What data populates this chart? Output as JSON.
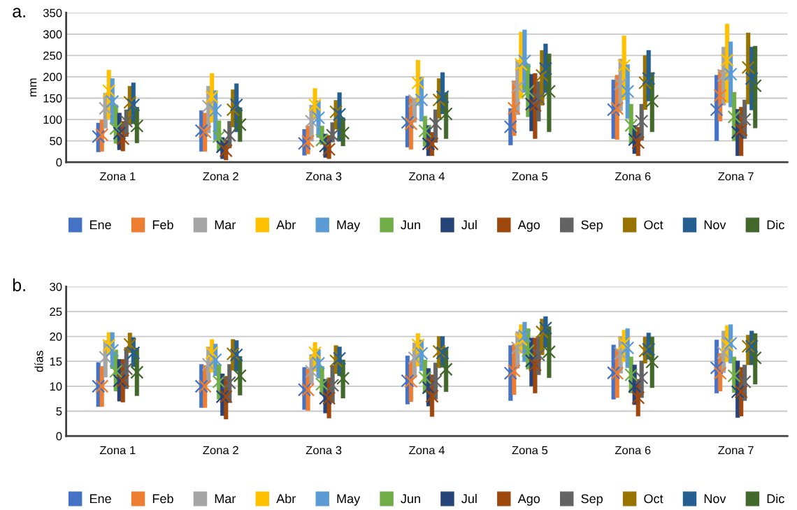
{
  "chart_data": [
    {
      "type": "bar",
      "title": "a.",
      "ylabel": "mm",
      "categories": [
        "Zona 1",
        "Zona 2",
        "Zona 3",
        "Zona 4",
        "Zona 5",
        "Zona 6",
        "Zona 7"
      ],
      "ylim": [
        0,
        350
      ],
      "yticks": [
        0,
        50,
        100,
        150,
        200,
        250,
        300,
        350
      ],
      "grid": "y",
      "legend": "bottom",
      "marker": "cross",
      "series": [
        {
          "name": "Ene",
          "color": "#4472c4",
          "base": [
            24,
            25,
            16,
            35,
            40,
            55,
            50
          ],
          "values": [
            68,
            96,
            61,
            120,
            86,
            138,
            154
          ]
        },
        {
          "name": "Feb",
          "color": "#ed7d31",
          "base": [
            25,
            25,
            19,
            30,
            62,
            53,
            96
          ],
          "values": [
            74,
            90,
            66,
            121,
            129,
            151,
            120
          ]
        },
        {
          "name": "Mar",
          "color": "#a5a5a5",
          "base": [
            79,
            68,
            49,
            93,
            111,
            120,
            133
          ],
          "values": [
            83,
            110,
            85,
            56,
            128,
            122,
            137
          ]
        },
        {
          "name": "Abr",
          "color": "#ffc000",
          "base": [
            101,
            93,
            101,
            133,
            149,
            146,
            139
          ],
          "values": [
            115,
            115,
            72,
            106,
            156,
            150,
            185
          ]
        },
        {
          "name": "May",
          "color": "#5b9bd5",
          "base": [
            88,
            52,
            58,
            96,
            163,
            102,
            129
          ],
          "values": [
            108,
            116,
            86,
            103,
            147,
            127,
            153
          ]
        },
        {
          "name": "Jun",
          "color": "#70ad47",
          "base": [
            44,
            27,
            41,
            37,
            106,
            44,
            50
          ],
          "values": [
            90,
            70,
            44,
            71,
            124,
            92,
            114
          ]
        },
        {
          "name": "Jul",
          "color": "#264478",
          "base": [
            29,
            8,
            11,
            15,
            73,
            20,
            15
          ],
          "values": [
            86,
            50,
            55,
            71,
            133,
            66,
            109
          ]
        },
        {
          "name": "Ago",
          "color": "#9e480e",
          "base": [
            26,
            5,
            8,
            15,
            55,
            15,
            15
          ],
          "values": [
            70,
            47,
            55,
            55,
            153,
            67,
            114
          ]
        },
        {
          "name": "Sep",
          "color": "#636363",
          "base": [
            60,
            33,
            47,
            46,
            96,
            51,
            55
          ],
          "values": [
            63,
            63,
            46,
            77,
            93,
            85,
            91
          ]
        },
        {
          "name": "Oct",
          "color": "#997300",
          "base": [
            88,
            82,
            77,
            103,
            133,
            123,
            136
          ],
          "values": [
            90,
            88,
            68,
            93,
            129,
            127,
            167
          ]
        },
        {
          "name": "Nov",
          "color": "#255e91",
          "base": [
            90,
            71,
            49,
            113,
            163,
            143,
            122
          ],
          "values": [
            96,
            113,
            114,
            97,
            114,
            119,
            148
          ]
        },
        {
          "name": "Dic",
          "color": "#43682b",
          "base": [
            45,
            48,
            38,
            55,
            71,
            71,
            80
          ],
          "values": [
            84,
            80,
            66,
            108,
            183,
            139,
            192
          ]
        },
        {
          "type": "scatter",
          "color": "#4472c4",
          "values": [
            60,
            74,
            44,
            93,
            83,
            123,
            123
          ]
        },
        {
          "type": "scatter",
          "color": "#ed7d31",
          "values": [
            64,
            71,
            49,
            90,
            126,
            126,
            156
          ]
        },
        {
          "type": "scatter",
          "color": "#a5a5a5",
          "values": [
            126,
            131,
            96,
            144,
            176,
            183,
            203
          ]
        },
        {
          "type": "scatter",
          "color": "#ffc000",
          "values": [
            167,
            153,
            134,
            186,
            229,
            226,
            239
          ]
        },
        {
          "type": "scatter",
          "color": "#5b9bd5",
          "values": [
            142,
            121,
            104,
            146,
            237,
            166,
            206
          ]
        },
        {
          "type": "scatter",
          "color": "#70ad47",
          "values": [
            79,
            60,
            52,
            73,
            166,
            86,
            106
          ]
        },
        {
          "type": "scatter",
          "color": "#264478",
          "values": [
            68,
            36,
            38,
            43,
            136,
            53,
            70
          ]
        },
        {
          "type": "scatter",
          "color": "#9e480e",
          "values": [
            55,
            27,
            30,
            43,
            133,
            46,
            76
          ]
        },
        {
          "type": "scatter",
          "color": "#636363",
          "values": [
            96,
            63,
            63,
            90,
            149,
            96,
            100
          ]
        },
        {
          "type": "scatter",
          "color": "#997300",
          "values": [
            140,
            123,
            118,
            146,
            203,
            186,
            222
          ]
        },
        {
          "type": "scatter",
          "color": "#255e91",
          "values": [
            134,
            134,
            112,
            153,
            219,
            196,
            196
          ]
        },
        {
          "type": "scatter",
          "color": "#43682b",
          "values": [
            85,
            88,
            68,
            113,
            166,
            143,
            179
          ]
        }
      ]
    },
    {
      "type": "bar",
      "title": "b.",
      "ylabel": "días",
      "categories": [
        "Zona 1",
        "Zona 2",
        "Zona 3",
        "Zona 4",
        "Zona 5",
        "Zona 6",
        "Zona 7"
      ],
      "ylim": [
        0,
        30
      ],
      "yticks": [
        0,
        5,
        10,
        15,
        20,
        25,
        30
      ],
      "grid": "y",
      "legend": "bottom",
      "marker": "cross",
      "series": [
        {
          "name": "Ene",
          "color": "#4472c4",
          "base": [
            5.9,
            5.7,
            5.3,
            6.4,
            7.1,
            7.4,
            8.6
          ],
          "values": [
            8.9,
            8.7,
            8.5,
            9.7,
            11.1,
            10.9,
            10.7
          ]
        },
        {
          "name": "Feb",
          "color": "#ed7d31",
          "base": [
            5.9,
            5.7,
            5.1,
            6.9,
            8.3,
            7.7,
            9.0
          ],
          "values": [
            8.1,
            8.5,
            8.4,
            8.2,
            10.1,
            9.7,
            7.6
          ]
        },
        {
          "name": "Mar",
          "color": "#a5a5a5",
          "base": [
            11.8,
            10.7,
            10.4,
            11.7,
            13.6,
            12.6,
            12.7
          ],
          "values": [
            7.4,
            7.2,
            6.0,
            7.0,
            7.4,
            7.4,
            8.4
          ]
        },
        {
          "name": "Abr",
          "color": "#ffc000",
          "base": [
            16.3,
            12.8,
            13.0,
            14.0,
            16.6,
            14.9,
            14.9
          ],
          "values": [
            4.5,
            6.6,
            5.8,
            6.6,
            5.8,
            6.4,
            7.3
          ]
        },
        {
          "name": "May",
          "color": "#5b9bd5",
          "base": [
            13.5,
            12.1,
            11.6,
            13.1,
            14.9,
            13.7,
            14.6
          ],
          "values": [
            7.3,
            6.4,
            5.8,
            6.2,
            8.0,
            7.9,
            7.8
          ]
        },
        {
          "name": "Jun",
          "color": "#70ad47",
          "base": [
            9.0,
            7.4,
            8.3,
            8.7,
            13.4,
            8.6,
            8.7
          ],
          "values": [
            8.3,
            7.0,
            5.7,
            6.6,
            8.2,
            7.3,
            7.2
          ]
        },
        {
          "name": "Jul",
          "color": "#264478",
          "base": [
            7.0,
            4.1,
            4.6,
            6.0,
            10.0,
            6.3,
            3.7
          ],
          "values": [
            8.4,
            8.4,
            6.8,
            7.6,
            9.7,
            8.0,
            11.4
          ]
        },
        {
          "name": "Ago",
          "color": "#9e480e",
          "base": [
            6.8,
            3.4,
            3.6,
            3.9,
            8.6,
            4.0,
            4.0
          ],
          "values": [
            8.6,
            8.6,
            8.1,
            8.4,
            11.1,
            7.4,
            9.8
          ]
        },
        {
          "name": "Sep",
          "color": "#636363",
          "base": [
            9.5,
            6.7,
            6.7,
            7.4,
            12.3,
            7.7,
            7.1
          ],
          "values": [
            8.3,
            7.7,
            7.5,
            7.3,
            7.7,
            7.4,
            7.2
          ]
        },
        {
          "name": "Oct",
          "color": "#997300",
          "base": [
            16.7,
            13.2,
            12.5,
            13.7,
            16.3,
            14.6,
            14.3
          ],
          "values": [
            4.0,
            6.2,
            5.7,
            6.3,
            7.2,
            5.3,
            6.0
          ]
        },
        {
          "name": "Nov",
          "color": "#255e91",
          "base": [
            13.9,
            13.0,
            12.1,
            13.8,
            17.8,
            15.4,
            14.3
          ],
          "values": [
            5.9,
            6.2,
            5.8,
            6.2,
            6.2,
            5.3,
            6.8
          ]
        },
        {
          "name": "Dic",
          "color": "#43682b",
          "base": [
            8.1,
            8.2,
            7.6,
            8.9,
            11.7,
            9.7,
            10.4
          ],
          "values": [
            9.6,
            7.8,
            7.7,
            8.9,
            10.3,
            10.2,
            10.2
          ]
        },
        {
          "type": "scatter",
          "color": "#4472c4",
          "values": [
            10.0,
            10.0,
            9.3,
            11.1,
            12.6,
            12.7,
            13.7
          ]
        },
        {
          "type": "scatter",
          "color": "#ed7d31",
          "values": [
            10.0,
            10.0,
            9.3,
            11.0,
            13.1,
            12.6,
            12.6
          ]
        },
        {
          "type": "scatter",
          "color": "#a5a5a5",
          "values": [
            15.8,
            14.4,
            13.0,
            15.7,
            17.7,
            16.6,
            16.7
          ]
        },
        {
          "type": "scatter",
          "color": "#ffc000",
          "values": [
            18.2,
            16.7,
            16.7,
            18.3,
            19.4,
            18.6,
            18.3
          ]
        },
        {
          "type": "scatter",
          "color": "#5b9bd5",
          "values": [
            17.2,
            15.3,
            14.6,
            16.6,
            20.1,
            17.7,
            18.6
          ]
        },
        {
          "type": "scatter",
          "color": "#70ad47",
          "values": [
            13.0,
            10.9,
            10.4,
            11.7,
            17.1,
            12.3,
            12.1
          ]
        },
        {
          "type": "scatter",
          "color": "#264478",
          "values": [
            11.1,
            7.9,
            7.6,
            9.7,
            15.1,
            10.0,
            8.9
          ]
        },
        {
          "type": "scatter",
          "color": "#9e480e",
          "values": [
            11.1,
            7.9,
            7.6,
            8.0,
            14.3,
            7.7,
            8.9
          ]
        },
        {
          "type": "scatter",
          "color": "#636363",
          "values": [
            13.5,
            10.7,
            10.2,
            11.0,
            16.3,
            11.7,
            10.9
          ]
        },
        {
          "type": "scatter",
          "color": "#997300",
          "values": [
            18.4,
            16.5,
            15.1,
            17.0,
            20.9,
            17.1,
            18.0
          ]
        },
        {
          "type": "scatter",
          "color": "#255e91",
          "values": [
            16.7,
            16.3,
            15.6,
            16.7,
            21.7,
            17.4,
            18.0
          ]
        },
        {
          "type": "scatter",
          "color": "#43682b",
          "values": [
            12.8,
            12.1,
            11.6,
            13.4,
            16.9,
            14.9,
            15.7
          ]
        }
      ]
    }
  ]
}
